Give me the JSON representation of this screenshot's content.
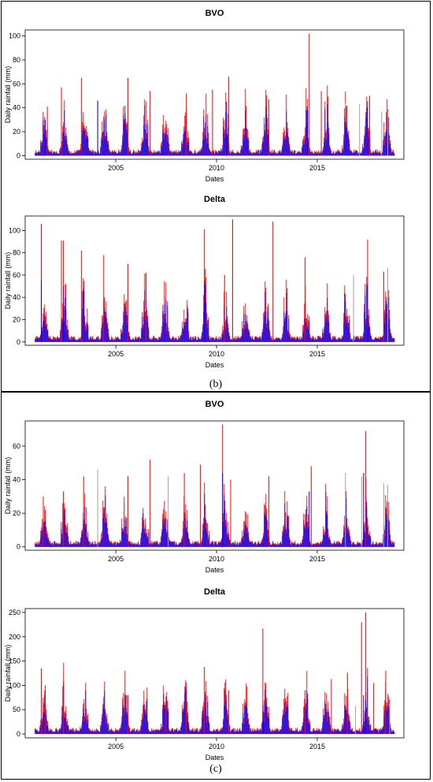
{
  "panels": [
    {
      "label": "(b)"
    },
    {
      "label": "(c)"
    }
  ],
  "colors": {
    "red": "#ff0000",
    "blue": "#0000ff",
    "grey": "#a0a0a0"
  },
  "chart_data": [
    {
      "type": "bar",
      "title": "BVO",
      "xlabel": "Dates",
      "ylabel": "Daily rainfall (mm)",
      "xlim": [
        2000.5,
        2019.3
      ],
      "ylim": [
        -3,
        105
      ],
      "x_ticks": [
        2005,
        2010,
        2015
      ],
      "y_ticks": [
        0,
        20,
        40,
        60,
        80,
        100
      ],
      "seed": 11,
      "series": [
        {
          "color": "#a0a0a0",
          "peaks": [
            [
              2004.1,
              46
            ],
            [
              2016.4,
              44
            ],
            [
              2017.1,
              43
            ],
            [
              2018.2,
              37
            ],
            [
              2018.5,
              37
            ]
          ]
        },
        {
          "color": "#ff0000",
          "peaks": [
            [
              2001.6,
              41
            ],
            [
              2002.3,
              57
            ],
            [
              2003.3,
              65
            ],
            [
              2005.6,
              65
            ],
            [
              2006.7,
              54
            ],
            [
              2008.5,
              52
            ],
            [
              2009.8,
              55
            ],
            [
              2010.6,
              66
            ],
            [
              2012.6,
              47
            ],
            [
              2014.6,
              102
            ],
            [
              2015.2,
              54
            ],
            [
              2017.6,
              50
            ]
          ]
        },
        {
          "color": "#0000ff",
          "peaks": [
            [
              2001.5,
              30
            ],
            [
              2004.1,
              46
            ],
            [
              2010.5,
              45
            ],
            [
              2014.5,
              41
            ],
            [
              2016.4,
              28
            ]
          ]
        }
      ]
    },
    {
      "type": "bar",
      "title": "Delta",
      "xlabel": "Dates",
      "ylabel": "Daily rainfall (mm)",
      "xlim": [
        2000.5,
        2019.3
      ],
      "ylim": [
        -3,
        113
      ],
      "x_ticks": [
        2005,
        2010,
        2015
      ],
      "y_ticks": [
        0,
        20,
        40,
        60,
        80,
        100
      ],
      "seed": 23,
      "series": [
        {
          "color": "#a0a0a0",
          "peaks": [
            [
              2016.8,
              60
            ],
            [
              2018.5,
              66
            ]
          ]
        },
        {
          "color": "#ff0000",
          "peaks": [
            [
              2001.3,
              106
            ],
            [
              2002.3,
              91
            ],
            [
              2002.4,
              91
            ],
            [
              2003.3,
              82
            ],
            [
              2004.4,
              78
            ],
            [
              2005.6,
              70
            ],
            [
              2006.5,
              62
            ],
            [
              2009.4,
              101
            ],
            [
              2010.4,
              60
            ],
            [
              2010.8,
              110
            ],
            [
              2012.8,
              108
            ],
            [
              2014.4,
              76
            ],
            [
              2017.5,
              92
            ],
            [
              2018.3,
              63
            ]
          ]
        },
        {
          "color": "#0000ff",
          "peaks": [
            [
              2001.3,
              55
            ],
            [
              2002.4,
              50
            ],
            [
              2009.4,
              55
            ],
            [
              2017.5,
              52
            ]
          ]
        }
      ]
    },
    {
      "type": "bar",
      "title": "BVO",
      "xlabel": "Dates",
      "ylabel": "Daily rainfall (mm)",
      "xlim": [
        2000.5,
        2019.3
      ],
      "ylim": [
        -2,
        75
      ],
      "x_ticks": [
        2005,
        2010,
        2015
      ],
      "y_ticks": [
        0,
        20,
        40,
        60
      ],
      "seed": 37,
      "series": [
        {
          "color": "#a0a0a0",
          "peaks": [
            [
              2004.1,
              46
            ],
            [
              2007.6,
              42
            ],
            [
              2016.4,
              44
            ],
            [
              2017.2,
              42
            ],
            [
              2018.3,
              38
            ],
            [
              2018.5,
              37
            ]
          ]
        },
        {
          "color": "#ff0000",
          "peaks": [
            [
              2001.4,
              30
            ],
            [
              2002.4,
              33
            ],
            [
              2003.4,
              42
            ],
            [
              2005.6,
              42
            ],
            [
              2006.7,
              52
            ],
            [
              2008.4,
              44
            ],
            [
              2009.2,
              49
            ],
            [
              2010.3,
              73
            ],
            [
              2010.7,
              40
            ],
            [
              2012.6,
              42
            ],
            [
              2014.7,
              48
            ],
            [
              2017.4,
              69
            ]
          ]
        },
        {
          "color": "#0000ff",
          "peaks": [
            [
              2010.3,
              44
            ],
            [
              2014.6,
              33
            ],
            [
              2017.3,
              44
            ]
          ]
        }
      ]
    },
    {
      "type": "bar",
      "title": "Delta",
      "xlabel": "Dates",
      "ylabel": "Daily rainfall (mm)",
      "xlim": [
        2000.5,
        2019.3
      ],
      "ylim": [
        -8,
        258
      ],
      "x_ticks": [
        2005,
        2010,
        2015
      ],
      "y_ticks": [
        0,
        50,
        100,
        150,
        200,
        250
      ],
      "seed": 51,
      "series": [
        {
          "color": "#a0a0a0",
          "peaks": [
            [
              2016.9,
              58
            ],
            [
              2018.6,
              65
            ]
          ]
        },
        {
          "color": "#ff0000",
          "peaks": [
            [
              2001.3,
              135
            ],
            [
              2001.5,
              100
            ],
            [
              2002.4,
              108
            ],
            [
              2005.6,
              80
            ],
            [
              2007.5,
              78
            ],
            [
              2008.5,
              85
            ],
            [
              2009.4,
              138
            ],
            [
              2010.6,
              90
            ],
            [
              2012.3,
              217
            ],
            [
              2014.4,
              90
            ],
            [
              2015.7,
              113
            ],
            [
              2016.5,
              126
            ],
            [
              2017.2,
              230
            ],
            [
              2017.4,
              250
            ],
            [
              2017.8,
              105
            ],
            [
              2018.4,
              130
            ]
          ]
        },
        {
          "color": "#0000ff",
          "peaks": [
            [
              2012.3,
              60
            ],
            [
              2017.3,
              80
            ],
            [
              2017.4,
              70
            ]
          ]
        }
      ]
    }
  ]
}
